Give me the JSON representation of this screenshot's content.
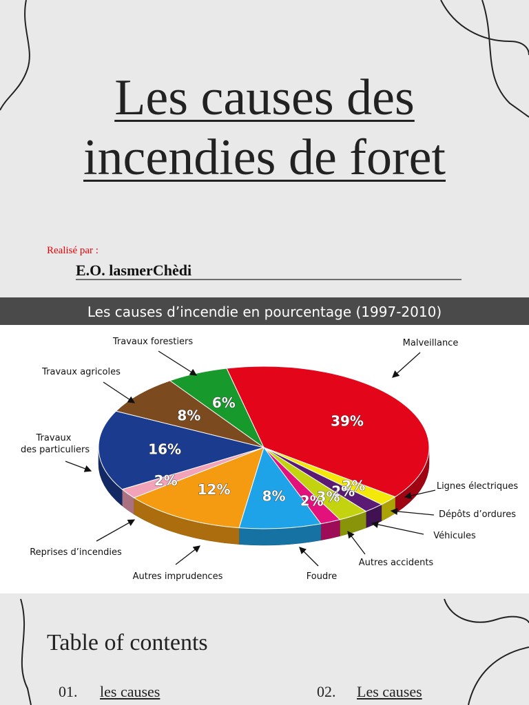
{
  "slide": {
    "title_lines": [
      "Les causes des",
      "incendies de foret"
    ],
    "author_label": "Realisé par :",
    "author": "E.O. lasmerChèdi",
    "toc_title": "Table of contents",
    "toc": [
      {
        "number": "01.",
        "label": "les causes"
      },
      {
        "number": "02.",
        "label": "Les causes"
      }
    ]
  },
  "chart_data": {
    "type": "pie",
    "title": "Les causes d’incendie en pourcentage (1997-2010)",
    "categories": [
      "Malveillance",
      "Lignes électriques",
      "Dépôts d’ordures",
      "Véhicules",
      "Autres accidents",
      "Foudre",
      "Autres imprudences",
      "Reprises d’incendies",
      "Travaux des particuliers",
      "Travaux agricoles",
      "Travaux forestiers"
    ],
    "values": [
      39,
      2,
      2,
      3,
      2,
      8,
      12,
      2,
      16,
      8,
      6
    ],
    "value_labels": [
      "39%",
      "2%",
      "2%",
      "3%",
      "2%",
      "8%",
      "12%",
      "2%",
      "16%",
      "8%",
      "6%"
    ],
    "colors": [
      "#e3061b",
      "#f4e80a",
      "#5b1a73",
      "#c4d30f",
      "#e2117c",
      "#1ea3e8",
      "#f49b12",
      "#f3a3b8",
      "#1b3b8f",
      "#7b4a1e",
      "#17992c"
    ]
  }
}
